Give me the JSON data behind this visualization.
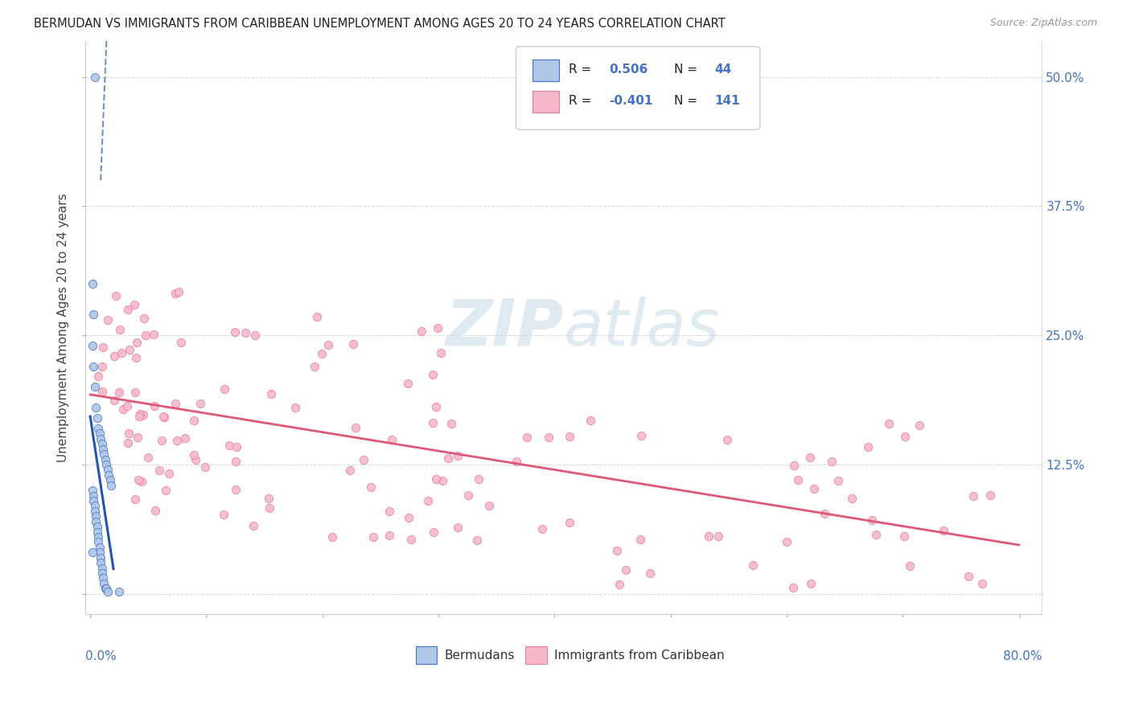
{
  "title": "BERMUDAN VS IMMIGRANTS FROM CARIBBEAN UNEMPLOYMENT AMONG AGES 20 TO 24 YEARS CORRELATION CHART",
  "source": "Source: ZipAtlas.com",
  "ylabel": "Unemployment Among Ages 20 to 24 years",
  "bermudan_R": 0.506,
  "bermudan_N": 44,
  "caribbean_R": -0.401,
  "caribbean_N": 141,
  "blue_scatter_color": "#aec6e8",
  "blue_edge_color": "#4472c4",
  "blue_line_color": "#2255aa",
  "pink_scatter_color": "#f5b8c8",
  "pink_edge_color": "#e87aa0",
  "pink_line_color": "#e05878",
  "background_color": "#ffffff",
  "grid_color": "#cccccc",
  "watermark_color": "#ccdce8",
  "legend_blue_color": "#4472c4",
  "y_ticks": [
    0.0,
    0.125,
    0.25,
    0.375,
    0.5
  ],
  "y_tick_labels_right": [
    "",
    "12.5%",
    "25.0%",
    "37.5%",
    "50.0%"
  ],
  "xlim": [
    -0.004,
    0.82
  ],
  "ylim": [
    -0.02,
    0.535
  ]
}
